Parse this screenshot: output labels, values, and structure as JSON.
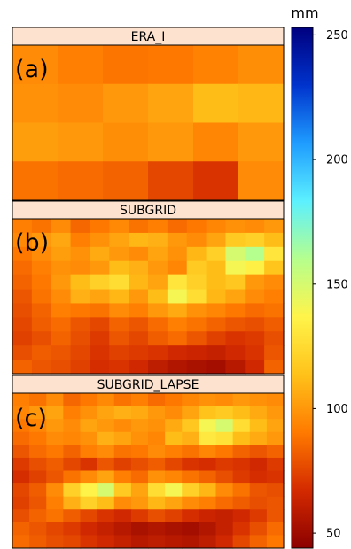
{
  "chart_data": {
    "type": "heatmap",
    "colorbar": {
      "unit": "mm",
      "range": [
        44,
        253
      ],
      "ticks": [
        50,
        100,
        150,
        200,
        250
      ],
      "colormap": [
        "#8b0000",
        "#d42a00",
        "#ff7a00",
        "#ffc21a",
        "#fff44a",
        "#b5ff8e",
        "#5cf0ff",
        "#1f9cff",
        "#0033cc",
        "#00007f"
      ]
    },
    "panels": [
      {
        "title": "ERA_I",
        "tag": "(a)",
        "rows": 4,
        "cols": 6,
        "values": [
          [
            96,
            92,
            89,
            90,
            93,
            97
          ],
          [
            98,
            96,
            100,
            104,
            112,
            110
          ],
          [
            102,
            100,
            97,
            100,
            94,
            100
          ],
          [
            88,
            86,
            84,
            76,
            70,
            96
          ]
        ]
      },
      {
        "title": "SUBGRID",
        "tag": "(b)",
        "rows": 11,
        "cols": 14,
        "values": [
          [
            92,
            88,
            96,
            85,
            90,
            95,
            88,
            92,
            86,
            90,
            94,
            98,
            96,
            100
          ],
          [
            95,
            100,
            105,
            92,
            98,
            104,
            110,
            108,
            100,
            96,
            104,
            118,
            120,
            112
          ],
          [
            90,
            96,
            102,
            98,
            106,
            100,
            96,
            104,
            98,
            110,
            120,
            150,
            160,
            130
          ],
          [
            86,
            92,
            98,
            96,
            100,
            112,
            108,
            100,
            94,
            118,
            112,
            140,
            135,
            115
          ],
          [
            84,
            90,
            100,
            112,
            120,
            126,
            110,
            104,
            130,
            120,
            112,
            116,
            100,
            96
          ],
          [
            80,
            88,
            96,
            108,
            104,
            110,
            100,
            112,
            140,
            126,
            110,
            104,
            96,
            92
          ],
          [
            78,
            84,
            92,
            90,
            88,
            96,
            92,
            100,
            106,
            98,
            94,
            90,
            86,
            88
          ],
          [
            76,
            82,
            86,
            80,
            76,
            84,
            80,
            86,
            92,
            88,
            84,
            80,
            78,
            82
          ],
          [
            74,
            78,
            84,
            78,
            72,
            80,
            76,
            82,
            86,
            80,
            74,
            70,
            72,
            78
          ],
          [
            78,
            82,
            80,
            76,
            70,
            74,
            72,
            70,
            66,
            64,
            62,
            66,
            70,
            80
          ],
          [
            84,
            80,
            78,
            74,
            68,
            70,
            66,
            60,
            56,
            54,
            52,
            58,
            66,
            84
          ]
        ]
      },
      {
        "title": "SUBGRID_LAPSE",
        "tag": "(c)",
        "rows": 12,
        "cols": 16,
        "values": [
          [
            92,
            88,
            96,
            85,
            90,
            95,
            88,
            92,
            86,
            90,
            94,
            98,
            96,
            100,
            98,
            96
          ],
          [
            94,
            100,
            104,
            92,
            98,
            104,
            108,
            106,
            100,
            96,
            104,
            114,
            118,
            112,
            106,
            100
          ],
          [
            90,
            94,
            100,
            96,
            104,
            100,
            96,
            100,
            98,
            106,
            116,
            140,
            150,
            126,
            112,
            104
          ],
          [
            86,
            90,
            96,
            94,
            98,
            108,
            104,
            98,
            94,
            112,
            108,
            132,
            128,
            112,
            106,
            100
          ],
          [
            80,
            86,
            90,
            84,
            92,
            96,
            88,
            90,
            96,
            92,
            88,
            94,
            90,
            84,
            80,
            84
          ],
          [
            72,
            78,
            82,
            76,
            70,
            80,
            74,
            78,
            82,
            76,
            70,
            68,
            72,
            70,
            66,
            72
          ],
          [
            68,
            74,
            80,
            88,
            96,
            104,
            92,
            86,
            98,
            94,
            88,
            84,
            78,
            72,
            68,
            70
          ],
          [
            76,
            82,
            96,
            120,
            136,
            150,
            118,
            104,
            126,
            140,
            120,
            110,
            96,
            88,
            80,
            78
          ],
          [
            74,
            80,
            92,
            108,
            120,
            112,
            96,
            100,
            110,
            104,
            96,
            92,
            86,
            82,
            78,
            80
          ],
          [
            78,
            84,
            88,
            82,
            76,
            70,
            66,
            72,
            78,
            74,
            68,
            64,
            62,
            66,
            72,
            80
          ],
          [
            84,
            80,
            76,
            72,
            66,
            62,
            58,
            54,
            56,
            54,
            52,
            56,
            62,
            70,
            78,
            86
          ],
          [
            86,
            82,
            78,
            76,
            70,
            66,
            62,
            58,
            60,
            58,
            56,
            60,
            66,
            76,
            84,
            90
          ]
        ]
      }
    ]
  }
}
